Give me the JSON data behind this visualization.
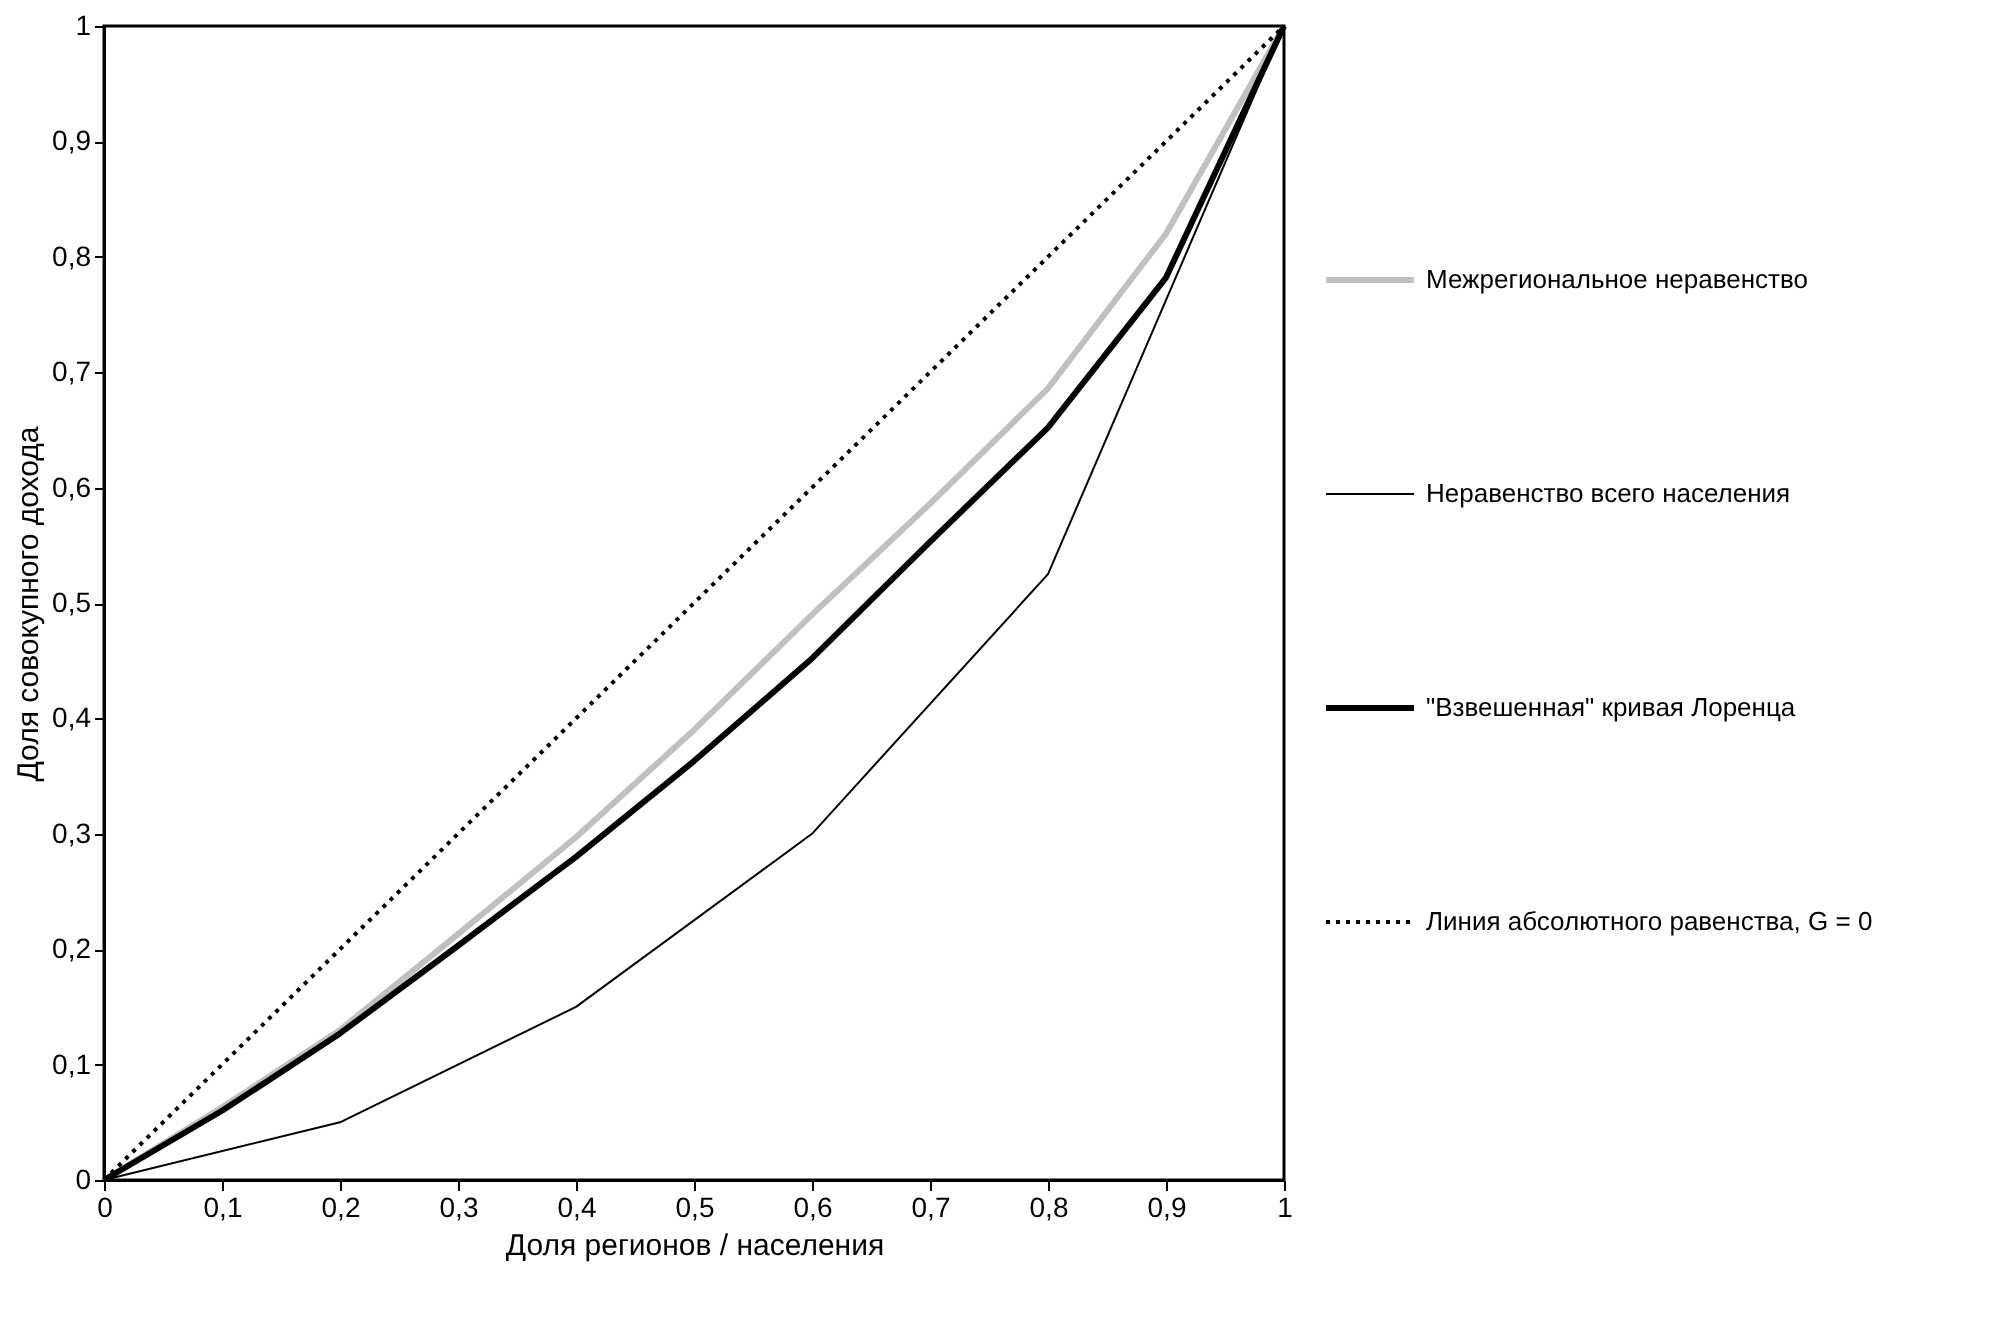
{
  "chart_data": {
    "type": "line",
    "xlabel": "Доля регионов / населения",
    "ylabel": "Доля совокупного дохода",
    "series": [
      {
        "name": "Межрегиональное неравенство",
        "color": "#c0c0c0",
        "line_style": "solid",
        "x": [
          0,
          0.1,
          0.2,
          0.3,
          0.4,
          0.5,
          0.6,
          0.7,
          0.8,
          0.9,
          1
        ],
        "values": [
          0,
          0.063,
          0.13,
          0.213,
          0.297,
          0.39,
          0.49,
          0.586,
          0.686,
          0.82,
          1
        ]
      },
      {
        "name": "Неравенство всего населения",
        "color": "#000000",
        "line_style": "solid",
        "x": [
          0,
          0.2,
          0.4,
          0.6,
          0.8,
          1
        ],
        "values": [
          0,
          0.05,
          0.15,
          0.3,
          0.525,
          1
        ]
      },
      {
        "name": "\"Взвешенная\" кривая Лоренца",
        "color": "#000000",
        "line_style": "solid",
        "x": [
          0,
          0.1,
          0.2,
          0.3,
          0.4,
          0.5,
          0.6,
          0.7,
          0.8,
          0.9,
          1
        ],
        "values": [
          0,
          0.06,
          0.127,
          0.203,
          0.28,
          0.363,
          0.452,
          0.553,
          0.652,
          0.782,
          1
        ]
      },
      {
        "name": "Линия абсолютного равенства, G = 0",
        "color": "#000000",
        "line_style": "dotted",
        "x": [
          0,
          1
        ],
        "values": [
          0,
          1
        ]
      }
    ],
    "xlim": [
      0,
      1
    ],
    "ylim": [
      0,
      1
    ],
    "xticks": [
      0,
      {
        "value": 0.1,
        "label": "0,1"
      },
      {
        "value": 0.2,
        "label": "0,2"
      },
      {
        "value": 0.3,
        "label": "0,3"
      },
      {
        "value": 0.4,
        "label": "0,4"
      },
      {
        "value": 0.5,
        "label": "0,5"
      },
      {
        "value": 0.6,
        "label": "0,6"
      },
      {
        "value": 0.7,
        "label": "0,7"
      },
      {
        "value": 0.8,
        "label": "0,8"
      },
      {
        "value": 0.9,
        "label": "0,9"
      },
      1
    ],
    "yticks": [
      0,
      {
        "value": 0.1,
        "label": "0,1"
      },
      {
        "value": 0.2,
        "label": "0,2"
      },
      {
        "value": 0.3,
        "label": "0,3"
      },
      {
        "value": 0.4,
        "label": "0,4"
      },
      {
        "value": 0.5,
        "label": "0,5"
      },
      {
        "value": 0.6,
        "label": "0,6"
      },
      {
        "value": 0.7,
        "label": "0,7"
      },
      {
        "value": 0.8,
        "label": "0,8"
      },
      {
        "value": 0.9,
        "label": "0,9"
      },
      1
    ],
    "grid": false,
    "legend": "right",
    "marker": "none"
  }
}
